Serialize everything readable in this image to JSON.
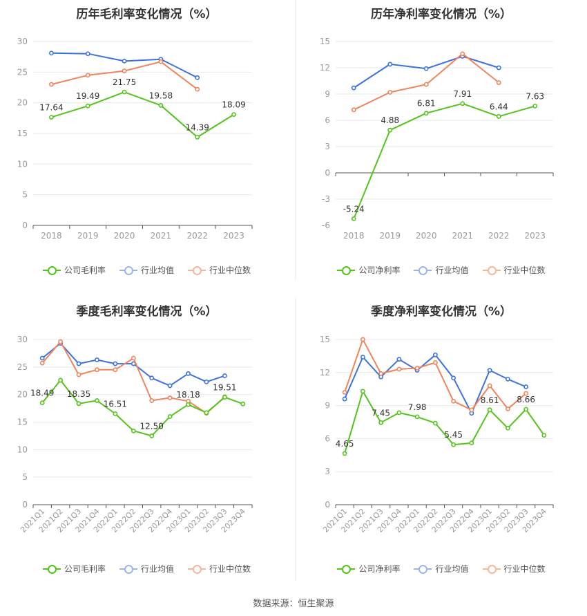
{
  "source": "数据来源：恒生聚源",
  "colors": {
    "company": "#52c41a",
    "avg": "#3b72df",
    "median": "#f0845b",
    "grid": "#e9e9e9",
    "axis": "#999999",
    "label": "#333333"
  },
  "chart_data": [
    {
      "type": "line",
      "title": "历年毛利率变化情况（%）",
      "categories": [
        "2018",
        "2019",
        "2020",
        "2021",
        "2022",
        "2023"
      ],
      "ylim": [
        0,
        30
      ],
      "yticks": [
        0,
        5,
        10,
        15,
        20,
        25,
        30
      ],
      "grid": true,
      "legend_position": "bottom",
      "series": [
        {
          "name": "公司毛利率",
          "color": "#52c41a",
          "values": [
            17.64,
            19.49,
            21.75,
            19.58,
            14.39,
            18.09
          ],
          "labels": [
            "17.64",
            "19.49",
            "21.75",
            "19.58",
            "14.39",
            "18.09"
          ]
        },
        {
          "name": "行业均值",
          "color": "#3b72df",
          "values": [
            28.1,
            28.0,
            26.8,
            27.1,
            24.1,
            null
          ],
          "labels": []
        },
        {
          "name": "行业中位数",
          "color": "#f0845b",
          "values": [
            23.0,
            24.5,
            25.2,
            26.7,
            22.2,
            null
          ],
          "labels": []
        }
      ]
    },
    {
      "type": "line",
      "title": "历年净利率变化情况（%）",
      "categories": [
        "2018",
        "2019",
        "2020",
        "2021",
        "2022",
        "2023"
      ],
      "ylim": [
        -6,
        15
      ],
      "yticks": [
        -6,
        -3,
        0,
        3,
        6,
        9,
        12,
        15
      ],
      "grid": true,
      "legend_position": "bottom",
      "series": [
        {
          "name": "公司净利率",
          "color": "#52c41a",
          "values": [
            -5.24,
            4.88,
            6.81,
            7.91,
            6.44,
            7.63
          ],
          "labels": [
            "-5.24",
            "4.88",
            "6.81",
            "7.91",
            "6.44",
            "7.63"
          ]
        },
        {
          "name": "行业均值",
          "color": "#3b72df",
          "values": [
            9.7,
            12.4,
            11.9,
            13.3,
            12.0,
            null
          ],
          "labels": []
        },
        {
          "name": "行业中位数",
          "color": "#f0845b",
          "values": [
            7.2,
            9.2,
            10.1,
            13.6,
            10.3,
            null
          ],
          "labels": []
        }
      ]
    },
    {
      "type": "line",
      "title": "季度毛利率变化情况（%）",
      "categories": [
        "2021Q1",
        "2021Q2",
        "2021Q3",
        "2021Q4",
        "2022Q1",
        "2022Q2",
        "2022Q3",
        "2022Q4",
        "2023Q1",
        "2023Q2",
        "2023Q3",
        "2023Q4"
      ],
      "ylim": [
        0,
        30
      ],
      "yticks": [
        0,
        5,
        10,
        15,
        20,
        25,
        30
      ],
      "grid": true,
      "legend_position": "bottom",
      "series": [
        {
          "name": "公司毛利率",
          "color": "#52c41a",
          "values": [
            18.49,
            22.6,
            18.35,
            18.9,
            16.51,
            13.4,
            12.5,
            16.0,
            18.18,
            16.7,
            19.51,
            18.3
          ],
          "labels": [
            "18.49",
            "",
            "18.35",
            "",
            "16.51",
            "",
            "12.50",
            "",
            "18.18",
            "",
            "19.51",
            ""
          ]
        },
        {
          "name": "行业均值",
          "color": "#3b72df",
          "values": [
            26.6,
            29.3,
            25.6,
            26.3,
            25.6,
            25.6,
            23.0,
            21.6,
            23.8,
            22.3,
            23.4,
            null
          ],
          "labels": []
        },
        {
          "name": "行业中位数",
          "color": "#f0845b",
          "values": [
            25.7,
            29.6,
            23.6,
            24.5,
            24.5,
            26.6,
            18.9,
            19.4,
            18.8,
            16.6,
            19.6,
            null
          ],
          "labels": []
        }
      ]
    },
    {
      "type": "line",
      "title": "季度净利率变化情况（%）",
      "categories": [
        "2021Q1",
        "2021Q2",
        "2021Q3",
        "2021Q4",
        "2022Q1",
        "2022Q2",
        "2022Q3",
        "2022Q4",
        "2023Q1",
        "2023Q2",
        "2023Q3",
        "2023Q4"
      ],
      "ylim": [
        0,
        15
      ],
      "yticks": [
        0,
        3,
        6,
        9,
        12,
        15
      ],
      "grid": true,
      "legend_position": "bottom",
      "series": [
        {
          "name": "公司净利率",
          "color": "#52c41a",
          "values": [
            4.65,
            10.3,
            7.45,
            8.35,
            7.98,
            7.4,
            5.45,
            5.6,
            8.61,
            6.95,
            8.66,
            6.3
          ],
          "labels": [
            "4.65",
            "",
            "7.45",
            "",
            "7.98",
            "",
            "5.45",
            "",
            "8.61",
            "",
            "8.66",
            ""
          ]
        },
        {
          "name": "行业均值",
          "color": "#3b72df",
          "values": [
            9.6,
            13.4,
            11.6,
            13.2,
            12.2,
            13.6,
            11.5,
            8.3,
            12.2,
            11.4,
            10.7,
            null
          ],
          "labels": []
        },
        {
          "name": "行业中位数",
          "color": "#f0845b",
          "values": [
            10.2,
            15.0,
            11.9,
            12.3,
            12.4,
            12.9,
            9.4,
            8.6,
            10.8,
            8.7,
            10.1,
            null
          ],
          "labels": []
        }
      ]
    }
  ]
}
